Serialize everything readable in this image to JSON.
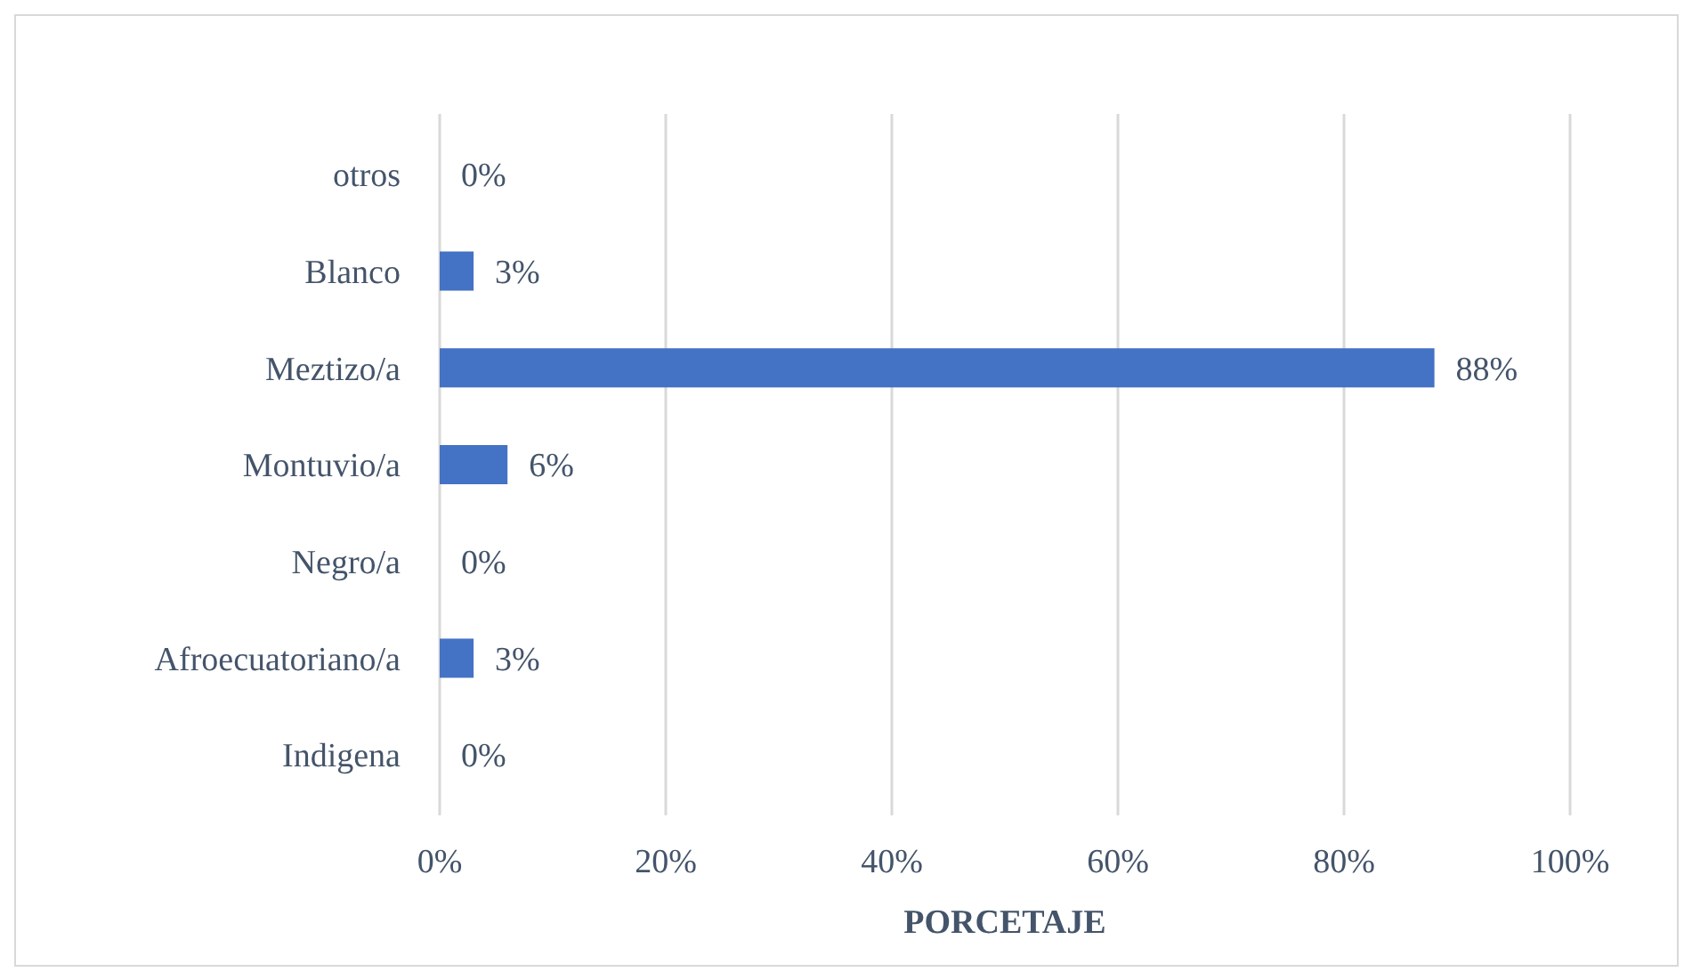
{
  "chart_data": {
    "type": "bar",
    "orientation": "horizontal",
    "categories": [
      "otros",
      "Blanco",
      "Meztizo/a",
      "Montuvio/a",
      "Negro/a",
      "Afroecuatoriano/a",
      "Indigena"
    ],
    "values": [
      0,
      3,
      88,
      6,
      0,
      3,
      0
    ],
    "value_labels": [
      "0%",
      "3%",
      "88%",
      "6%",
      "0%",
      "3%",
      "0%"
    ],
    "color": "#4472c4",
    "xlabel": "PORCETAJE",
    "xlim": [
      0,
      100
    ],
    "xticks": [
      {
        "value": 0,
        "label": "0%"
      },
      {
        "value": 20,
        "label": "20%"
      },
      {
        "value": 40,
        "label": "40%"
      },
      {
        "value": 60,
        "label": "60%"
      },
      {
        "value": 80,
        "label": "80%"
      },
      {
        "value": 100,
        "label": "100%"
      }
    ],
    "grid": "x"
  }
}
